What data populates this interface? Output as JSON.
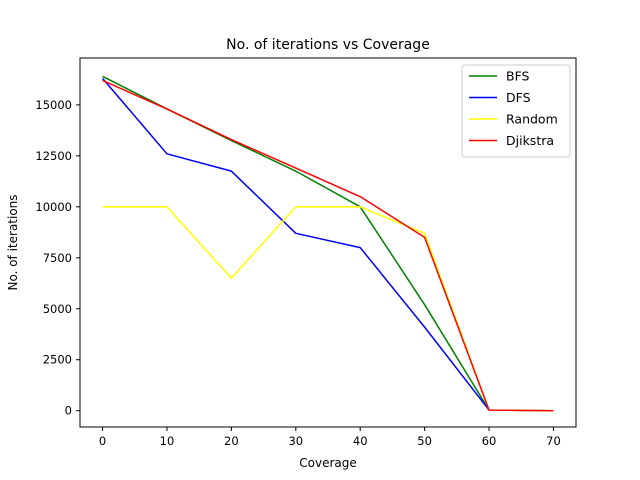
{
  "chart_data": {
    "type": "line",
    "title": "No. of iterations vs Coverage",
    "xlabel": "Coverage",
    "ylabel": "No. of iterations",
    "x": [
      0,
      10,
      20,
      30,
      40,
      50,
      60,
      70
    ],
    "xlim": [
      -3.5,
      73.5
    ],
    "ylim": [
      -800,
      17300
    ],
    "xticks": [
      0,
      10,
      20,
      30,
      40,
      50,
      60,
      70
    ],
    "yticks": [
      0,
      2500,
      5000,
      7500,
      10000,
      12500,
      15000
    ],
    "grid": false,
    "legend_position": "top-right",
    "series": [
      {
        "name": "BFS",
        "color": "#008000",
        "values": [
          16400,
          14800,
          13250,
          11750,
          10000,
          5200,
          30,
          0
        ]
      },
      {
        "name": "DFS",
        "color": "#0000ff",
        "values": [
          16300,
          12600,
          11750,
          8700,
          8000,
          4100,
          30,
          0
        ]
      },
      {
        "name": "Random",
        "color": "#ffff00",
        "values": [
          10000,
          10000,
          6500,
          10000,
          10000,
          8700,
          30,
          0
        ]
      },
      {
        "name": "Djikstra",
        "color": "#ff0000",
        "values": [
          16200,
          14800,
          13300,
          11900,
          10500,
          8500,
          30,
          0
        ]
      }
    ]
  }
}
